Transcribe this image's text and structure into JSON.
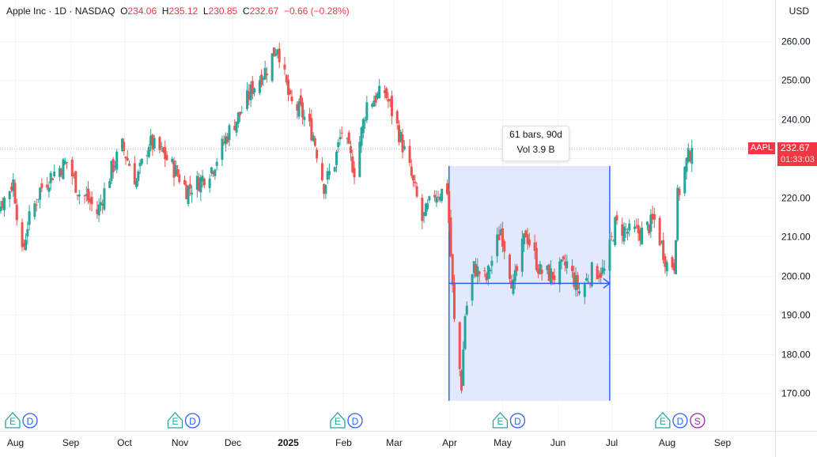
{
  "header": {
    "symbol_name": "Apple Inc",
    "timeframe_sep": " · 1D · ",
    "exchange": "NASDAQ",
    "o_label": "O",
    "o_value": "234.06",
    "h_label": "H",
    "h_value": "235.12",
    "l_label": "L",
    "l_value": "230.85",
    "c_label": "C",
    "c_value": "232.67",
    "change": "−0.66 (−0.28%)"
  },
  "currency": "USD",
  "last_price": {
    "symbol": "AAPL",
    "value": "232.67",
    "countdown": "01:33:03"
  },
  "measure": {
    "bars_text": "61 bars, 90d",
    "vol_text": "Vol 3.9 B"
  },
  "colors": {
    "up": "#26a69a",
    "down": "#ef5350",
    "measure_fill": "#dfe6fd",
    "measure_line": "#2962ff",
    "earnings": "#26a69a",
    "dividend": "#2962ff",
    "split": "#9c27b0"
  },
  "events": [
    {
      "x_date": "2024-08-01",
      "codes": [
        "E",
        "D"
      ]
    },
    {
      "x_date": "2024-10-31",
      "codes": [
        "E",
        "D"
      ]
    },
    {
      "x_date": "2025-01-30",
      "codes": [
        "E",
        "D"
      ]
    },
    {
      "x_date": "2025-05-01",
      "codes": [
        "E",
        "D"
      ]
    },
    {
      "x_date": "2025-07-31",
      "codes": [
        "E",
        "D",
        "S"
      ]
    }
  ],
  "chart_data": {
    "type": "candlestick",
    "y_axis_ticks": [
      "170.00",
      "180.00",
      "190.00",
      "200.00",
      "210.00",
      "220.00",
      "230.00",
      "240.00",
      "250.00",
      "260.00"
    ],
    "ylim": [
      166,
      268
    ],
    "x_axis_labels": [
      {
        "label": "Aug",
        "date": "2024-08-01"
      },
      {
        "label": "Sep",
        "date": "2024-09-01"
      },
      {
        "label": "Oct",
        "date": "2024-10-01"
      },
      {
        "label": "Nov",
        "date": "2024-11-01"
      },
      {
        "label": "Dec",
        "date": "2024-12-01"
      },
      {
        "label": "2025",
        "date": "2025-01-01"
      },
      {
        "label": "Feb",
        "date": "2025-02-01"
      },
      {
        "label": "Mar",
        "date": "2025-03-01"
      },
      {
        "label": "Apr",
        "date": "2025-04-01"
      },
      {
        "label": "May",
        "date": "2025-05-01"
      },
      {
        "label": "Jun",
        "date": "2025-06-01"
      },
      {
        "label": "Jul",
        "date": "2025-07-01"
      },
      {
        "label": "Aug",
        "date": "2025-08-01"
      },
      {
        "label": "Sep",
        "date": "2025-09-01"
      }
    ],
    "measure_range": {
      "start_date": "2025-04-01",
      "end_date": "2025-06-30",
      "start_price": 222,
      "end_price": 198,
      "top_price": 228,
      "bottom_price": 168
    },
    "close_path": [
      [
        "2024-07-15",
        220
      ],
      [
        "2024-07-24",
        218
      ],
      [
        "2024-07-31",
        224
      ],
      [
        "2024-08-05",
        205
      ],
      [
        "2024-08-08",
        213
      ],
      [
        "2024-08-15",
        222
      ],
      [
        "2024-08-22",
        226
      ],
      [
        "2024-08-30",
        229
      ],
      [
        "2024-09-06",
        221
      ],
      [
        "2024-09-10",
        220
      ],
      [
        "2024-09-16",
        216
      ],
      [
        "2024-09-24",
        227
      ],
      [
        "2024-09-30",
        233
      ],
      [
        "2024-10-08",
        224
      ],
      [
        "2024-10-15",
        234
      ],
      [
        "2024-10-23",
        231
      ],
      [
        "2024-10-31",
        226
      ],
      [
        "2024-11-05",
        222
      ],
      [
        "2024-11-12",
        224
      ],
      [
        "2024-11-20",
        228
      ],
      [
        "2024-11-29",
        237
      ],
      [
        "2024-12-06",
        242
      ],
      [
        "2024-12-12",
        248
      ],
      [
        "2024-12-20",
        253
      ],
      [
        "2024-12-26",
        259
      ],
      [
        "2025-01-02",
        244
      ],
      [
        "2025-01-08",
        242
      ],
      [
        "2025-01-15",
        236
      ],
      [
        "2025-01-21",
        223
      ],
      [
        "2025-01-27",
        229
      ],
      [
        "2025-01-31",
        237
      ],
      [
        "2025-02-07",
        227
      ],
      [
        "2025-02-14",
        244
      ],
      [
        "2025-02-24",
        247
      ],
      [
        "2025-03-03",
        238
      ],
      [
        "2025-03-10",
        227
      ],
      [
        "2025-03-17",
        214
      ],
      [
        "2025-03-24",
        221
      ],
      [
        "2025-03-31",
        222
      ],
      [
        "2025-04-04",
        188
      ],
      [
        "2025-04-08",
        172
      ],
      [
        "2025-04-10",
        190
      ],
      [
        "2025-04-15",
        202
      ],
      [
        "2025-04-22",
        199
      ],
      [
        "2025-04-30",
        212
      ],
      [
        "2025-05-07",
        197
      ],
      [
        "2025-05-14",
        211
      ],
      [
        "2025-05-22",
        201
      ],
      [
        "2025-05-30",
        200
      ],
      [
        "2025-06-06",
        203
      ],
      [
        "2025-06-13",
        196
      ],
      [
        "2025-06-20",
        201
      ],
      [
        "2025-06-27",
        201
      ],
      [
        "2025-07-03",
        213
      ],
      [
        "2025-07-11",
        211
      ],
      [
        "2025-07-18",
        211
      ],
      [
        "2025-07-25",
        214
      ],
      [
        "2025-08-01",
        203
      ],
      [
        "2025-08-05",
        203
      ],
      [
        "2025-08-07",
        220
      ],
      [
        "2025-08-12",
        229
      ],
      [
        "2025-08-15",
        232.67
      ]
    ]
  }
}
